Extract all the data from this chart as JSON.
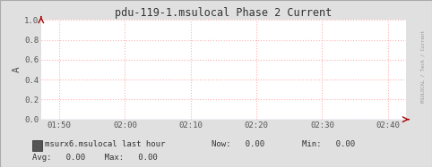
{
  "title": "pdu-119-1.msulocal Phase 2 Current",
  "ylabel": "A",
  "ylim": [
    0.0,
    1.0
  ],
  "yticks": [
    0.0,
    0.2,
    0.4,
    0.6,
    0.8,
    1.0
  ],
  "xtick_labels": [
    "01:50",
    "02:00",
    "02:10",
    "02:20",
    "02:30",
    "02:40"
  ],
  "bg_color": "#e0e0e0",
  "plot_bg_color": "#ffffff",
  "grid_color": "#ffb0b0",
  "arrow_color": "#aa0000",
  "legend_label": "msurx6.msulocal last hour",
  "legend_box_color": "#555555",
  "now_val": "0.00",
  "min_val": "0.00",
  "avg_val": "0.00",
  "max_val": "0.00",
  "right_label": "MSULOCAL / Tech / Current",
  "font_family": "monospace",
  "tick_color": "#555555",
  "text_color": "#333333"
}
